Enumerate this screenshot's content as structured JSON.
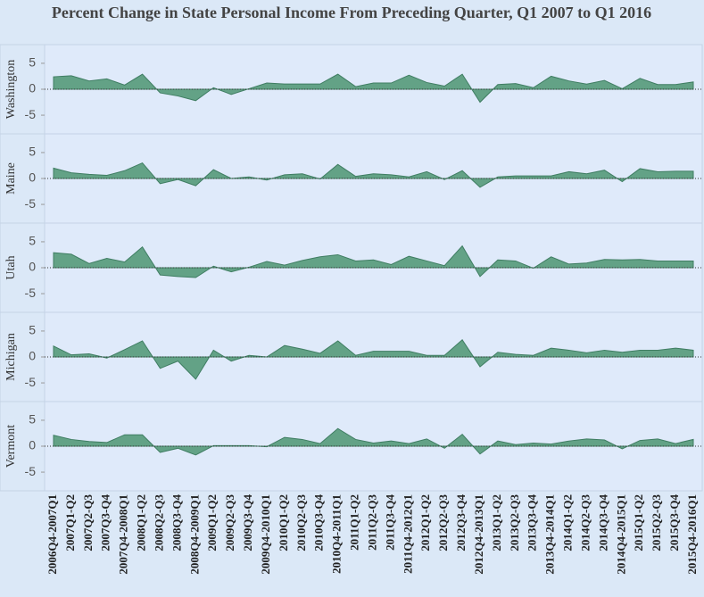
{
  "chart_data": {
    "type": "area",
    "title": "Percent Change in State Personal Income From Preceding Quarter, Q1 2007 to Q1 2016",
    "categories": [
      "2006Q4-2007Q1",
      "2007Q1-Q2",
      "2007Q2-Q3",
      "2007Q3-Q4",
      "2007Q4-2008Q1",
      "2008Q1-Q2",
      "2008Q2-Q3",
      "2008Q3-Q4",
      "2008Q4-2009Q1",
      "2009Q1-Q2",
      "2009Q2-Q3",
      "2009Q3-Q4",
      "2009Q4-2010Q1",
      "2010Q1-Q2",
      "2010Q2-Q3",
      "2010Q3-Q4",
      "2010Q4-2011Q1",
      "2011Q1-Q2",
      "2011Q2-Q3",
      "2011Q3-Q4",
      "2011Q4-2012Q1",
      "2012Q1-Q2",
      "2012Q2-Q3",
      "2012Q3-Q4",
      "2012Q4-2013Q1",
      "2013Q1-Q2",
      "2013Q2-Q3",
      "2013Q3-Q4",
      "2013Q4-2014Q1",
      "2014Q1-Q2",
      "2014Q2-Q3",
      "2014Q3-Q4",
      "2014Q4-2015Q1",
      "2015Q1-Q2",
      "2015Q2-Q3",
      "2015Q3-Q4",
      "2015Q4-2016Q1"
    ],
    "series": [
      {
        "name": "Washington",
        "color": "#5c9e80",
        "values": [
          2.4,
          2.6,
          1.6,
          2.0,
          0.8,
          2.9,
          -0.7,
          -1.3,
          -2.2,
          0.3,
          -1.0,
          0.1,
          1.2,
          1.0,
          1.0,
          1.0,
          2.9,
          0.5,
          1.2,
          1.2,
          2.7,
          1.3,
          0.6,
          2.9,
          -2.5,
          0.9,
          1.1,
          0.3,
          2.5,
          1.6,
          1.0,
          1.7,
          0.1,
          2.1,
          0.9,
          0.9,
          1.4
        ]
      },
      {
        "name": "Maine",
        "color": "#5c9e80",
        "values": [
          2.0,
          1.1,
          0.8,
          0.6,
          1.5,
          3.0,
          -1.0,
          -0.2,
          -1.4,
          1.7,
          0.0,
          0.3,
          -0.3,
          0.7,
          0.9,
          -0.1,
          2.7,
          0.4,
          0.9,
          0.7,
          0.3,
          1.3,
          -0.2,
          1.5,
          -1.7,
          0.3,
          0.5,
          0.5,
          0.5,
          1.3,
          0.9,
          1.6,
          -0.6,
          1.9,
          1.3,
          1.4,
          1.4
        ]
      },
      {
        "name": "Utah",
        "color": "#5c9e80",
        "values": [
          2.9,
          2.6,
          0.8,
          1.8,
          1.1,
          4.0,
          -1.4,
          -1.7,
          -1.9,
          0.3,
          -0.8,
          0.1,
          1.2,
          0.5,
          1.4,
          2.1,
          2.5,
          1.3,
          1.5,
          0.6,
          2.2,
          1.3,
          0.4,
          4.2,
          -1.7,
          1.5,
          1.3,
          -0.1,
          2.1,
          0.7,
          0.9,
          1.6,
          1.5,
          1.6,
          1.3,
          1.3,
          1.3
        ]
      },
      {
        "name": "Michigan",
        "color": "#5c9e80",
        "values": [
          2.1,
          0.4,
          0.6,
          -0.2,
          1.4,
          3.1,
          -2.2,
          -0.8,
          -4.3,
          1.3,
          -0.8,
          0.3,
          0.0,
          2.2,
          1.5,
          0.7,
          3.1,
          0.3,
          1.1,
          1.1,
          1.1,
          0.3,
          0.3,
          3.3,
          -1.9,
          0.9,
          0.5,
          0.3,
          1.7,
          1.3,
          0.8,
          1.3,
          0.9,
          1.3,
          1.3,
          1.7,
          1.3
        ]
      },
      {
        "name": "Vermont",
        "color": "#5c9e80",
        "values": [
          2.1,
          1.3,
          0.9,
          0.7,
          2.2,
          2.2,
          -1.2,
          -0.4,
          -1.7,
          0.1,
          0.1,
          0.1,
          -0.1,
          1.7,
          1.3,
          0.5,
          3.4,
          1.3,
          0.6,
          1.0,
          0.5,
          1.4,
          -0.4,
          2.3,
          -1.5,
          1.0,
          0.3,
          0.6,
          0.4,
          1.0,
          1.4,
          1.2,
          -0.5,
          1.1,
          1.4,
          0.5,
          1.3
        ]
      }
    ],
    "ylim": [
      -8.6,
      8.6
    ],
    "yticks": [
      5,
      0,
      -5
    ],
    "grid": false
  }
}
